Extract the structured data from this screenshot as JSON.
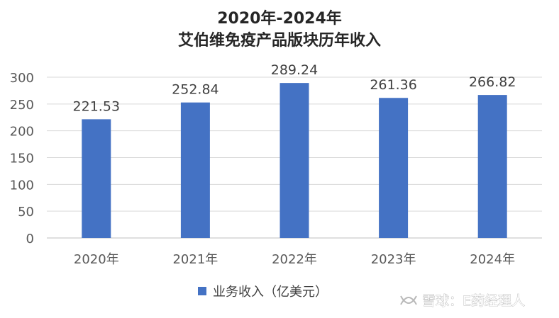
{
  "chart_data": {
    "type": "bar",
    "title": [
      "2020年-2024年",
      "艾伯维免疫产品版块历年收入"
    ],
    "categories": [
      "2020年",
      "2021年",
      "2022年",
      "2023年",
      "2024年"
    ],
    "series": [
      {
        "name": "业务收入（亿美元）",
        "values": [
          221.53,
          252.84,
          289.24,
          261.36,
          266.82
        ],
        "color": "#4472c4"
      }
    ],
    "data_labels": [
      "221.53",
      "252.84",
      "289.24",
      "261.36",
      "266.82"
    ],
    "yticks": [
      "0",
      "50",
      "100",
      "150",
      "200",
      "250",
      "300"
    ],
    "ylim": [
      0,
      300
    ],
    "grid": true,
    "legend_position": "bottom",
    "xlabel": "",
    "ylabel": ""
  },
  "watermark": "雪球：E药经理人"
}
